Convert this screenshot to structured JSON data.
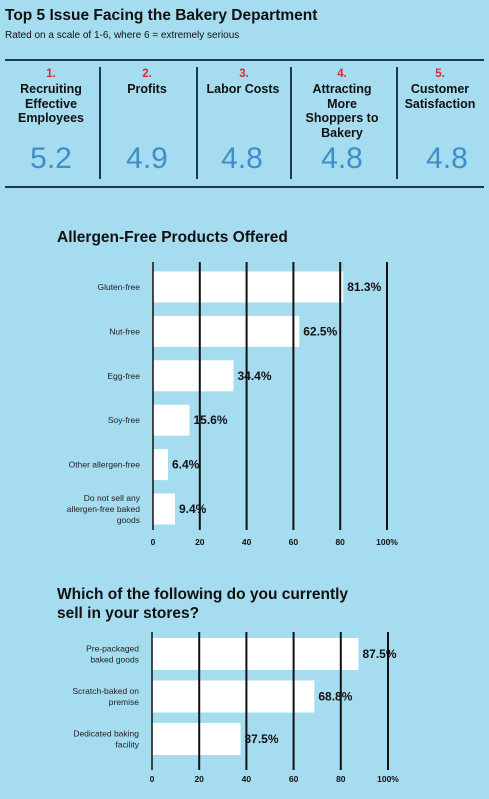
{
  "header": {
    "title": "Top 5 Issue Facing the Bakery Department",
    "subtitle": "Rated on a scale of 1-6, where 6 = extremely serious"
  },
  "issues": [
    {
      "rank": "1.",
      "label": "Recruiting Effective Employees",
      "score": "5.2"
    },
    {
      "rank": "2.",
      "label": "Profits",
      "score": "4.9"
    },
    {
      "rank": "3.",
      "label": "Labor Costs",
      "score": "4.8"
    },
    {
      "rank": "4.",
      "label": "Attracting More Shoppers to Bakery",
      "score": "4.8"
    },
    {
      "rank": "5.",
      "label": "Customer Satisfaction",
      "score": "4.8"
    }
  ],
  "colors": {
    "background": "#a6dcef",
    "rank": "#d82a35",
    "score": "#3d8ec9",
    "bar": "#ffffff",
    "rule": "#1b3a4b"
  },
  "chart_data": [
    {
      "type": "bar",
      "orientation": "horizontal",
      "title": "Allergen-Free Products Offered",
      "categories": [
        "Gluten-free",
        "Nut-free",
        "Egg-free",
        "Soy-free",
        "Other allergen-free",
        "Do not sell any allergen-free baked goods"
      ],
      "values": [
        81.3,
        62.5,
        34.4,
        15.6,
        6.4,
        9.4
      ],
      "value_labels": [
        "81.3%",
        "62.5%",
        "34.4%",
        "15.6%",
        "6.4%",
        "9.4%"
      ],
      "xlim": [
        0,
        100
      ],
      "ticks": [
        "0",
        "20",
        "40",
        "60",
        "80",
        "100%"
      ],
      "grid": true
    },
    {
      "type": "bar",
      "orientation": "horizontal",
      "title": "Which of the following do you currently sell in your stores?",
      "categories": [
        "Pre-packaged baked goods",
        "Scratch-baked on premise",
        "Dedicated baking facility"
      ],
      "values": [
        87.5,
        68.8,
        37.5
      ],
      "value_labels": [
        "87.5%",
        "68.8%",
        "37.5%"
      ],
      "xlim": [
        0,
        100
      ],
      "ticks": [
        "0",
        "20",
        "40",
        "60",
        "80",
        "100%"
      ],
      "grid": true
    }
  ]
}
